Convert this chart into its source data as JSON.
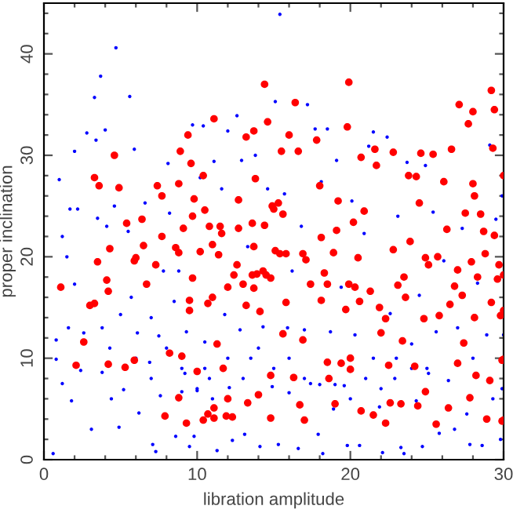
{
  "chart_data": {
    "type": "scatter",
    "xlabel": "libration amplitude",
    "ylabel": "proper inclination",
    "xlim": [
      0,
      30
    ],
    "ylim": [
      0,
      45
    ],
    "xticks": [
      0,
      {
        "value": 2,
        "label": null
      },
      {
        "value": 4,
        "label": null
      },
      {
        "value": 6,
        "label": null
      },
      {
        "value": 8,
        "label": null
      },
      10,
      {
        "value": 12,
        "label": null
      },
      {
        "value": 14,
        "label": null
      },
      {
        "value": 16,
        "label": null
      },
      {
        "value": 18,
        "label": null
      },
      20,
      {
        "value": 22,
        "label": null
      },
      {
        "value": 24,
        "label": null
      },
      {
        "value": 26,
        "label": null
      },
      {
        "value": 28,
        "label": null
      },
      30
    ],
    "yticks": [
      0,
      {
        "value": 2,
        "label": null
      },
      {
        "value": 4,
        "label": null
      },
      {
        "value": 6,
        "label": null
      },
      {
        "value": 8,
        "label": null
      },
      10,
      {
        "value": 12,
        "label": null
      },
      {
        "value": 14,
        "label": null
      },
      {
        "value": 16,
        "label": null
      },
      {
        "value": 18,
        "label": null
      },
      20,
      {
        "value": 22,
        "label": null
      },
      {
        "value": 24,
        "label": null
      },
      {
        "value": 26,
        "label": null
      },
      {
        "value": 28,
        "label": null
      },
      30,
      {
        "value": 32,
        "label": null
      },
      {
        "value": 34,
        "label": null
      },
      {
        "value": 36,
        "label": null
      },
      {
        "value": 38,
        "label": null
      },
      40,
      {
        "value": 42,
        "label": null
      },
      {
        "value": 44,
        "label": null
      }
    ],
    "marker": "circle",
    "grid": false,
    "series": [
      {
        "color": "#0000ff",
        "x": [
          0.6,
          0.8,
          0.8,
          1.0,
          1.2,
          1.2,
          1.5,
          1.6,
          1.7,
          1.8,
          2.0,
          2.0,
          2.2,
          2.4,
          2.6,
          2.8,
          3.1,
          3.3,
          3.4,
          3.5,
          3.7,
          3.8,
          3.8,
          4.0,
          4.1,
          4.3,
          4.4,
          4.6,
          4.7,
          4.9,
          5.0,
          5.2,
          5.6,
          5.5,
          5.7,
          5.9,
          6.1,
          6.2,
          6.6,
          6.9,
          7.0,
          7.1,
          7.3,
          7.5,
          7.6,
          7.8,
          8.1,
          8.2,
          8.5,
          8.6,
          8.8,
          9.0,
          9.2,
          9.3,
          9.5,
          9.7,
          9.8,
          10.0,
          10.2,
          10.4,
          10.5,
          10.8,
          11.1,
          11.3,
          11.6,
          11.8,
          12.0,
          12.1,
          12.3,
          12.6,
          12.8,
          12.9,
          13.1,
          13.3,
          13.5,
          13.8,
          14.1,
          14.3,
          14.6,
          14.9,
          15.1,
          15.3,
          15.4,
          15.9,
          15.7,
          16.0,
          16.2,
          16.6,
          16.8,
          17.0,
          17.2,
          17.4,
          17.7,
          17.9,
          18.1,
          18.2,
          18.5,
          18.7,
          18.9,
          19.1,
          19.4,
          19.6,
          19.8,
          20.1,
          20.3,
          20.6,
          20.9,
          21.2,
          21.5,
          21.5,
          21.9,
          22.1,
          22.4,
          22.6,
          22.9,
          23.1,
          23.3,
          23.5,
          23.7,
          24.0,
          24.3,
          24.5,
          24.7,
          24.9,
          25.1,
          25.4,
          25.6,
          25.8,
          26.1,
          26.4,
          26.8,
          27.0,
          27.3,
          27.6,
          27.8,
          28.0,
          28.3,
          28.6,
          28.9,
          29.1,
          29.3,
          29.5,
          29.8,
          29.9,
          30.0,
          29.9,
          6,
          7,
          8,
          9,
          10,
          10.5,
          11,
          12,
          13,
          14,
          15,
          16,
          17,
          18,
          19,
          20,
          21,
          22,
          23,
          24,
          25
        ],
        "values": [
          0.6,
          9.9,
          11.8,
          27.6,
          7.5,
          22,
          20,
          13,
          24.7,
          5.8,
          30.4,
          17.3,
          24.7,
          8.8,
          12.5,
          32.2,
          3,
          35.7,
          31.5,
          23.8,
          37.8,
          13,
          8.6,
          32.5,
          23,
          11,
          6,
          25,
          40.6,
          3.2,
          14.3,
          6.9,
          35.8,
          22.5,
          16,
          30.6,
          12.5,
          4.6,
          25.3,
          9.6,
          14,
          1.5,
          0.8,
          12.2,
          6.3,
          18.6,
          29.2,
          24.3,
          15.6,
          2.3,
          18.6,
          6.7,
          8.5,
          12.6,
          1.3,
          33,
          2.3,
          6.8,
          27.8,
          32.9,
          11.6,
          8,
          29.4,
          0.9,
          26.7,
          14.3,
          32.4,
          7.1,
          1.9,
          33.9,
          12.8,
          29.5,
          2.5,
          21,
          10,
          30,
          1.3,
          13.1,
          26.7,
          7.2,
          35.3,
          1.5,
          43.9,
          13,
          26.2,
          6.6,
          18.6,
          1.1,
          23,
          12.8,
          35,
          7.5,
          32.6,
          2.5,
          27.4,
          0.6,
          32.6,
          12.6,
          5,
          29.5,
          17,
          7.3,
          1.4,
          25.5,
          12.3,
          1.4,
          22.3,
          30.9,
          10,
          32.3,
          5.2,
          0.7,
          31.8,
          14.4,
          8,
          24,
          1.2,
          0.6,
          29.3,
          11.4,
          5.8,
          16.2,
          1.3,
          29,
          8.5,
          24.4,
          12.6,
          2.6,
          19.6,
          7.8,
          3,
          13,
          22.8,
          4.5,
          1.5,
          10,
          17.4,
          1.4,
          12.3,
          31,
          6,
          23.7,
          2,
          7,
          12.3,
          26,
          10,
          8,
          11,
          9,
          7,
          9,
          6,
          10,
          8,
          11,
          9,
          10,
          8,
          7.4,
          7.4,
          6,
          8,
          7,
          10,
          9,
          9
        ]
      },
      {
        "color": "#ff0000",
        "x": [
          1.1,
          2.1,
          2.6,
          3.0,
          3.3,
          3.3,
          3.5,
          3.6,
          4.1,
          4.2,
          4.3,
          4.2,
          4.6,
          4.9,
          5.3,
          5.4,
          5.9,
          5.9,
          6.0,
          6.4,
          6.5,
          6.7,
          7.3,
          7.4,
          7.7,
          7.9,
          7.7,
          8.2,
          8.6,
          8.8,
          8.9,
          8.8,
          8.8,
          9.0,
          9.1,
          9.3,
          9.4,
          9.5,
          9.5,
          9.6,
          9.7,
          9.7,
          9.8,
          10.0,
          10.2,
          10.4,
          10.4,
          10.5,
          10.7,
          10.7,
          10.8,
          11.0,
          11.0,
          11.1,
          11.1,
          11.1,
          11.3,
          11.4,
          11.5,
          11.6,
          11.7,
          11.9,
          12.0,
          12.0,
          12.3,
          12.4,
          12.6,
          12.7,
          12.7,
          13.0,
          13.2,
          13.2,
          13.3,
          13.7,
          13.6,
          13.6,
          13.7,
          13.7,
          13.8,
          13.9,
          14.0,
          14.1,
          14.3,
          14.4,
          14.4,
          14.5,
          14.6,
          14.8,
          14.8,
          14.8,
          14.9,
          15.0,
          15.1,
          15.3,
          15.4,
          15.5,
          15.6,
          15.6,
          15.8,
          15.8,
          16.0,
          16.3,
          16.4,
          16.6,
          16.7,
          16.9,
          17.0,
          16.9,
          17.1,
          17.4,
          17.8,
          18.0,
          18.1,
          18.1,
          18.3,
          18.5,
          18.5,
          18.6,
          18.9,
          19.0,
          19.1,
          19.2,
          19.4,
          19.7,
          19.8,
          19.9,
          19.9,
          20.0,
          20.0,
          20.2,
          20.3,
          20.5,
          20.6,
          20.7,
          20.7,
          20.9,
          21.3,
          21.5,
          21.6,
          21.7,
          21.9,
          22.0,
          22.3,
          22.3,
          22.5,
          22.6,
          22.8,
          22.8,
          23.1,
          23.3,
          23.4,
          23.5,
          23.6,
          23.8,
          23.9,
          24.2,
          24.3,
          24.4,
          24.5,
          24.6,
          24.8,
          24.9,
          24.9,
          25.1,
          25.4,
          25.6,
          25.7,
          25.8,
          26.1,
          26.3,
          26.5,
          26.4,
          26.6,
          26.8,
          27.0,
          27.0,
          27.1,
          27.3,
          27.4,
          27.5,
          27.7,
          27.8,
          27.9,
          28.0,
          28.0,
          28.1,
          28.1,
          28.2,
          28.3,
          28.5,
          28.7,
          28.8,
          28.9,
          29.1,
          29.2,
          29.3,
          29.2,
          29.4,
          29.4,
          29.6,
          29.7,
          29.8,
          29.9,
          29.9,
          30.0,
          30.0,
          30.0,
          30.0,
          30.0
        ],
        "values": [
          17,
          9.3,
          11.6,
          15.2,
          15.4,
          27.8,
          19.5,
          27,
          17.7,
          16.6,
          20.8,
          9.4,
          30,
          26.8,
          9.1,
          23.3,
          9.8,
          19.6,
          19.9,
          23.7,
          21.1,
          17.3,
          19.2,
          27,
          26,
          4.3,
          22,
          10.5,
          20.9,
          27.2,
          30.4,
          6.1,
          20.4,
          10.2,
          22.8,
          3.6,
          32,
          15.7,
          14.7,
          29.2,
          24,
          17.9,
          25.7,
          8.7,
          20.5,
          3.9,
          28,
          24.6,
          15.4,
          4.5,
          23,
          21.2,
          16,
          33.6,
          5.1,
          4.1,
          11.4,
          20.2,
          23,
          22.3,
          9,
          4.3,
          17,
          6,
          4.2,
          18.2,
          19.2,
          25.6,
          22.8,
          17.3,
          31.8,
          15.2,
          5.6,
          32.4,
          18.2,
          23.3,
          21,
          16.9,
          27.7,
          18.3,
          6.4,
          14.6,
          18.6,
          37,
          23.1,
          18.2,
          33.3,
          17.9,
          8.3,
          4.1,
          25,
          24.7,
          20.6,
          25.3,
          20.3,
          30.4,
          24.2,
          12.4,
          15.5,
          20.3,
          32,
          8.1,
          35.2,
          30.4,
          5.4,
          11.8,
          3.9,
          20.3,
          19.7,
          17.3,
          31.5,
          27,
          15.7,
          21.9,
          18.4,
          9.6,
          17.3,
          8,
          20.4,
          5.5,
          22.6,
          25.5,
          9.5,
          14.8,
          32.8,
          37.2,
          17.3,
          10,
          8.9,
          23.4,
          17,
          19.9,
          15.6,
          29.8,
          4.8,
          24.5,
          16.6,
          4.4,
          30.6,
          29,
          15,
          12.5,
          13.9,
          3.6,
          9.3,
          5.6,
          30.3,
          20.7,
          17.2,
          5.5,
          11.7,
          18,
          16,
          28,
          21.5,
          9.2,
          27.9,
          5.3,
          25.3,
          30.2,
          13.9,
          19.9,
          6.7,
          19.2,
          30.1,
          3.5,
          20,
          14.2,
          27.4,
          22.7,
          15.3,
          5.1,
          30.6,
          17.1,
          18.7,
          9.5,
          35,
          16.2,
          11.5,
          24.3,
          33.1,
          6.1,
          19.5,
          34.3,
          27.2,
          26,
          14,
          8.3,
          18,
          24.2,
          22.5,
          20.3,
          4,
          7.8,
          36.4,
          30.7,
          15.5,
          34.5,
          22.1,
          17.8,
          19.2,
          14.2,
          9.8,
          3.8,
          28,
          18.2,
          14.7,
          9.9,
          3.9
        ]
      }
    ]
  }
}
